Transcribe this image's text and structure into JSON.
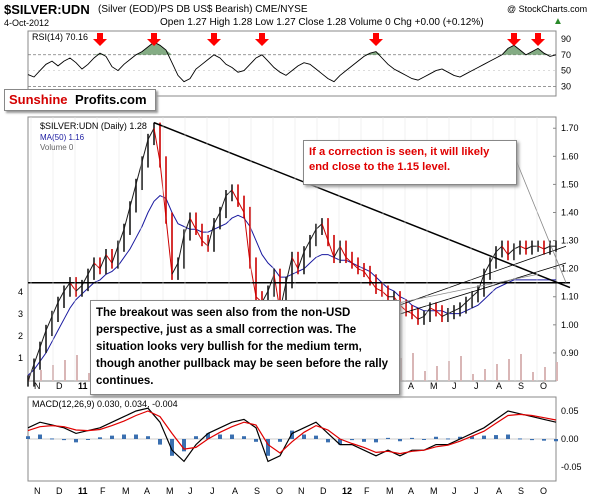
{
  "header": {
    "title": "$SILVER:UDN",
    "subtitle": "(Silver (EOD)/PS DB US$ Bearish) CME/NYSE",
    "credit": "@ StockCharts.com",
    "date": "4-Oct-2012",
    "quote": "Open 1.27  High 1.28  Low 1.27  Close 1.28  Volume 0  Chg +0.00 (+0.12%)",
    "quote_arrow": "▲"
  },
  "brand": {
    "part1": "Sunshine",
    "part2": "Profits.com"
  },
  "chart_data": [
    {
      "panel": "RSI",
      "type": "line",
      "title": "RSI(14) 70.16",
      "yticks": [
        30,
        50,
        70,
        90
      ],
      "ylim": [
        18,
        100
      ],
      "overbought": 70,
      "oversold": 30,
      "x": [
        0,
        6,
        12,
        18,
        24,
        30,
        36,
        42,
        48,
        54,
        60,
        66,
        72,
        78,
        84,
        90,
        96,
        102,
        108,
        114,
        120,
        126,
        132,
        138,
        144,
        150,
        156,
        162,
        168,
        174,
        180,
        186,
        192,
        198,
        204,
        210,
        216,
        222,
        228,
        234,
        240,
        246,
        252,
        258,
        264,
        270,
        276,
        282,
        288,
        294,
        300,
        306,
        312,
        318,
        324,
        330,
        336,
        342,
        348,
        354,
        360,
        366,
        372,
        378,
        384,
        390,
        396,
        402,
        408,
        414,
        420,
        426,
        432,
        438,
        444,
        450,
        456,
        462,
        468,
        474,
        480,
        486,
        492,
        498,
        504,
        510,
        516,
        522,
        528
      ],
      "values": [
        45,
        42,
        50,
        58,
        62,
        56,
        62,
        66,
        60,
        52,
        58,
        66,
        72,
        68,
        55,
        50,
        58,
        64,
        70,
        74,
        80,
        86,
        82,
        76,
        60,
        44,
        36,
        40,
        52,
        58,
        64,
        70,
        66,
        58,
        54,
        48,
        50,
        58,
        66,
        70,
        62,
        54,
        48,
        44,
        50,
        56,
        60,
        58,
        52,
        46,
        40,
        36,
        44,
        50,
        56,
        62,
        68,
        72,
        74,
        66,
        58,
        52,
        48,
        44,
        40,
        38,
        42,
        46,
        50,
        52,
        48,
        44,
        42,
        46,
        50,
        54,
        58,
        62,
        66,
        70,
        78,
        82,
        76,
        70,
        74,
        78,
        72,
        68,
        70
      ],
      "arrows_note": "red down-arrows mark overbought RSI peaks"
    },
    {
      "panel": "Price",
      "type": "line",
      "title": "$SILVER:UDN (Daily) 1.28",
      "series": [
        {
          "name": "MA(50) 1.16"
        },
        {
          "name": "Volume 0"
        }
      ],
      "yticks": [
        0.9,
        1.0,
        1.1,
        1.2,
        1.3,
        1.4,
        1.5,
        1.6,
        1.7
      ],
      "ylim": [
        0.8,
        1.74
      ],
      "volume_ticks": [
        1,
        2,
        3,
        4
      ],
      "x_labels": [
        "N",
        "D",
        "11",
        "F",
        "M",
        "A",
        "M",
        "J",
        "J",
        "A",
        "S",
        "O",
        "N",
        "D",
        "12",
        "F",
        "M",
        "A",
        "M",
        "J",
        "J",
        "A",
        "S",
        "O"
      ],
      "x": [
        0,
        6,
        12,
        18,
        24,
        30,
        36,
        42,
        48,
        54,
        60,
        66,
        72,
        78,
        84,
        90,
        96,
        102,
        108,
        114,
        120,
        126,
        132,
        138,
        144,
        150,
        156,
        162,
        168,
        174,
        180,
        186,
        192,
        198,
        204,
        210,
        216,
        222,
        228,
        234,
        240,
        246,
        252,
        258,
        264,
        270,
        276,
        282,
        288,
        294,
        300,
        306,
        312,
        318,
        324,
        330,
        336,
        342,
        348,
        354,
        360,
        366,
        372,
        378,
        384,
        390,
        396,
        402,
        408,
        414,
        420,
        426,
        432,
        438,
        444,
        450,
        456,
        462,
        468,
        474,
        480,
        486,
        492,
        498,
        504,
        510,
        516,
        522,
        528
      ],
      "price": [
        0.8,
        0.86,
        0.92,
        0.98,
        1.03,
        1.08,
        1.12,
        1.15,
        1.12,
        1.14,
        1.18,
        1.22,
        1.2,
        1.25,
        1.22,
        1.28,
        1.34,
        1.42,
        1.5,
        1.58,
        1.66,
        1.7,
        1.58,
        1.38,
        1.18,
        1.22,
        1.32,
        1.38,
        1.34,
        1.3,
        1.28,
        1.36,
        1.4,
        1.46,
        1.48,
        1.44,
        1.4,
        1.22,
        1.1,
        1.08,
        1.12,
        1.18,
        1.05,
        1.15,
        1.24,
        1.2,
        1.26,
        1.3,
        1.34,
        1.36,
        1.3,
        1.24,
        1.28,
        1.24,
        1.22,
        1.2,
        1.19,
        1.16,
        1.13,
        1.12,
        1.1,
        1.1,
        1.07,
        1.05,
        1.04,
        1.02,
        1.03,
        1.06,
        1.05,
        1.03,
        1.04,
        1.05,
        1.06,
        1.08,
        1.1,
        1.12,
        1.18,
        1.22,
        1.26,
        1.28,
        1.25,
        1.27,
        1.28,
        1.27,
        1.28,
        1.28,
        1.27,
        1.28,
        1.28
      ],
      "ma50": [
        0.82,
        0.84,
        0.87,
        0.9,
        0.94,
        0.98,
        1.02,
        1.06,
        1.09,
        1.11,
        1.13,
        1.15,
        1.16,
        1.18,
        1.19,
        1.21,
        1.24,
        1.27,
        1.31,
        1.35,
        1.4,
        1.44,
        1.46,
        1.45,
        1.4,
        1.36,
        1.35,
        1.34,
        1.34,
        1.33,
        1.33,
        1.34,
        1.35,
        1.36,
        1.38,
        1.39,
        1.38,
        1.35,
        1.3,
        1.25,
        1.22,
        1.2,
        1.17,
        1.17,
        1.18,
        1.19,
        1.2,
        1.22,
        1.24,
        1.25,
        1.25,
        1.24,
        1.23,
        1.23,
        1.22,
        1.21,
        1.2,
        1.19,
        1.17,
        1.15,
        1.13,
        1.12,
        1.1,
        1.09,
        1.07,
        1.06,
        1.05,
        1.05,
        1.05,
        1.05,
        1.04,
        1.04,
        1.04,
        1.05,
        1.06,
        1.07,
        1.09,
        1.11,
        1.13,
        1.14,
        1.15,
        1.16,
        1.16,
        1.16,
        1.16,
        1.16,
        1.16,
        1.16,
        1.16
      ],
      "support_level": 1.15,
      "resistance_line": {
        "start": {
          "x": 126,
          "y": 1.72
        },
        "end": {
          "x": 528,
          "y": 1.14
        }
      },
      "annotations": [
        {
          "id": "correction",
          "text": "If a correction is seen, it will likely end close to the 1.15 level."
        },
        {
          "id": "breakout",
          "text": "The breakout was seen also from the non-USD perspective, just as a small correction was. The situation looks very bullish for the medium term, though another pullback may be seen before the rally continues."
        }
      ]
    },
    {
      "panel": "MACD",
      "type": "line",
      "title": "MACD(12,26,9) 0.030, 0.034, -0.004",
      "yticks": [
        -0.05,
        0.0,
        0.05
      ],
      "ylim": [
        -0.075,
        0.075
      ],
      "x_labels": [
        "N",
        "D",
        "11",
        "F",
        "M",
        "A",
        "M",
        "J",
        "J",
        "A",
        "S",
        "O",
        "N",
        "D",
        "12",
        "F",
        "M",
        "A",
        "M",
        "J",
        "J",
        "A",
        "S",
        "O"
      ],
      "x": [
        0,
        12,
        24,
        36,
        48,
        60,
        72,
        84,
        96,
        108,
        120,
        132,
        144,
        156,
        168,
        180,
        192,
        204,
        216,
        228,
        240,
        252,
        264,
        276,
        288,
        300,
        312,
        324,
        336,
        348,
        360,
        372,
        384,
        396,
        408,
        420,
        432,
        444,
        456,
        468,
        480,
        492,
        504,
        516,
        528
      ],
      "macd": [
        0.02,
        0.03,
        0.025,
        0.02,
        0.01,
        0.015,
        0.02,
        0.03,
        0.04,
        0.05,
        0.055,
        0.03,
        -0.02,
        -0.04,
        -0.01,
        0.01,
        0.02,
        0.03,
        0.035,
        0.02,
        -0.04,
        -0.03,
        0.01,
        0.02,
        0.03,
        0.01,
        -0.01,
        -0.01,
        -0.02,
        -0.03,
        -0.02,
        -0.03,
        -0.02,
        -0.02,
        -0.01,
        -0.01,
        0.0,
        0.01,
        0.02,
        0.035,
        0.05,
        0.045,
        0.04,
        0.035,
        0.03
      ],
      "signal": [
        0.015,
        0.022,
        0.024,
        0.022,
        0.016,
        0.015,
        0.017,
        0.024,
        0.032,
        0.042,
        0.05,
        0.04,
        0.01,
        -0.018,
        -0.015,
        0.0,
        0.012,
        0.022,
        0.03,
        0.025,
        -0.01,
        -0.025,
        -0.005,
        0.012,
        0.024,
        0.016,
        0.0,
        -0.008,
        -0.015,
        -0.024,
        -0.022,
        -0.026,
        -0.022,
        -0.02,
        -0.014,
        -0.011,
        -0.004,
        0.005,
        0.014,
        0.028,
        0.042,
        0.044,
        0.042,
        0.038,
        0.034
      ]
    }
  ],
  "colors": {
    "price": "#1a1a1a",
    "price_red": "#cc0000",
    "ma": "#1a1aa0",
    "volume": "#d9b6b6",
    "arrow": "#ff0000",
    "macd": "#000000",
    "signal": "#e00000",
    "hist": "#3a6fb0",
    "rsi_fill": "#6e9e6e",
    "brand_red": "#d40000"
  }
}
